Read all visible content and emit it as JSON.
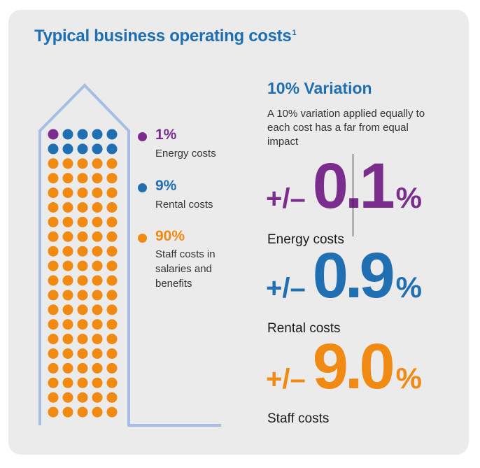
{
  "title": "Typical business operating costs",
  "title_superscript": "1",
  "legend": [
    {
      "pct": "1%",
      "desc": "Energy costs",
      "color": "#7b2d8e"
    },
    {
      "pct": "9%",
      "desc": "Rental costs",
      "color": "#1f6fb2"
    },
    {
      "pct": "90%",
      "desc": "Staff costs in salaries and benefits",
      "color": "#f08a13"
    }
  ],
  "variation": {
    "title": "10% Variation",
    "text": "A 10% variation applied equally to each cost has a far from equal impact"
  },
  "impacts": [
    {
      "prefix": "+/–",
      "value": "0.1",
      "suffix": "%",
      "label": "Energy costs",
      "color": "#7b2d8e"
    },
    {
      "prefix": "+/–",
      "value": "0.9",
      "suffix": "%",
      "label": "Rental costs",
      "color": "#1f6fb2"
    },
    {
      "prefix": "+/–",
      "value": "9.0",
      "suffix": "%",
      "label": "Staff costs",
      "color": "#f08a13"
    }
  ],
  "dots": {
    "total": 100,
    "energy": 1,
    "rental": 9,
    "staff": 90,
    "columns": 5
  }
}
